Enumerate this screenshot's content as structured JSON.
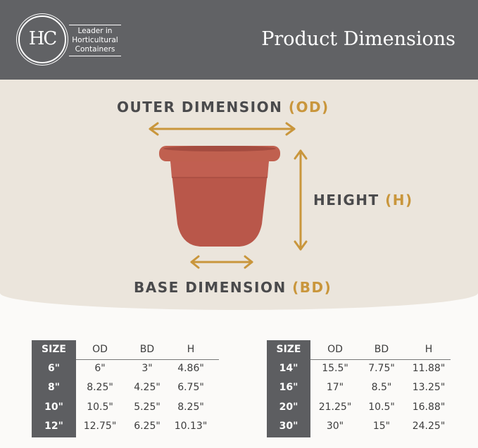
{
  "header": {
    "logo_text": "HC",
    "tagline": [
      "Leader in",
      "Horticultural",
      "Containers"
    ],
    "title": "Product Dimensions"
  },
  "diagram": {
    "outer": {
      "label": "OUTER DIMENSION",
      "abbr": "(OD)"
    },
    "height": {
      "label": "HEIGHT",
      "abbr": "(H)"
    },
    "base": {
      "label": "BASE DIMENSION",
      "abbr": "(BD)"
    },
    "colors": {
      "accent": "#c9963c",
      "pot": "#b9574a",
      "text": "#4a4a4c"
    }
  },
  "tables": [
    {
      "headers": [
        "SIZE",
        "OD",
        "BD",
        "H"
      ],
      "rows": [
        [
          "6\"",
          "6\"",
          "3\"",
          "4.86\""
        ],
        [
          "8\"",
          "8.25\"",
          "4.25\"",
          "6.75\""
        ],
        [
          "10\"",
          "10.5\"",
          "5.25\"",
          "8.25\""
        ],
        [
          "12\"",
          "12.75\"",
          "6.25\"",
          "10.13\""
        ]
      ]
    },
    {
      "headers": [
        "SIZE",
        "OD",
        "BD",
        "H"
      ],
      "rows": [
        [
          "14\"",
          "15.5\"",
          "7.75\"",
          "11.88\""
        ],
        [
          "16\"",
          "17\"",
          "8.5\"",
          "13.25\""
        ],
        [
          "20\"",
          "21.25\"",
          "10.5\"",
          "16.88\""
        ],
        [
          "30\"",
          "30\"",
          "15\"",
          "24.25\""
        ]
      ]
    }
  ]
}
